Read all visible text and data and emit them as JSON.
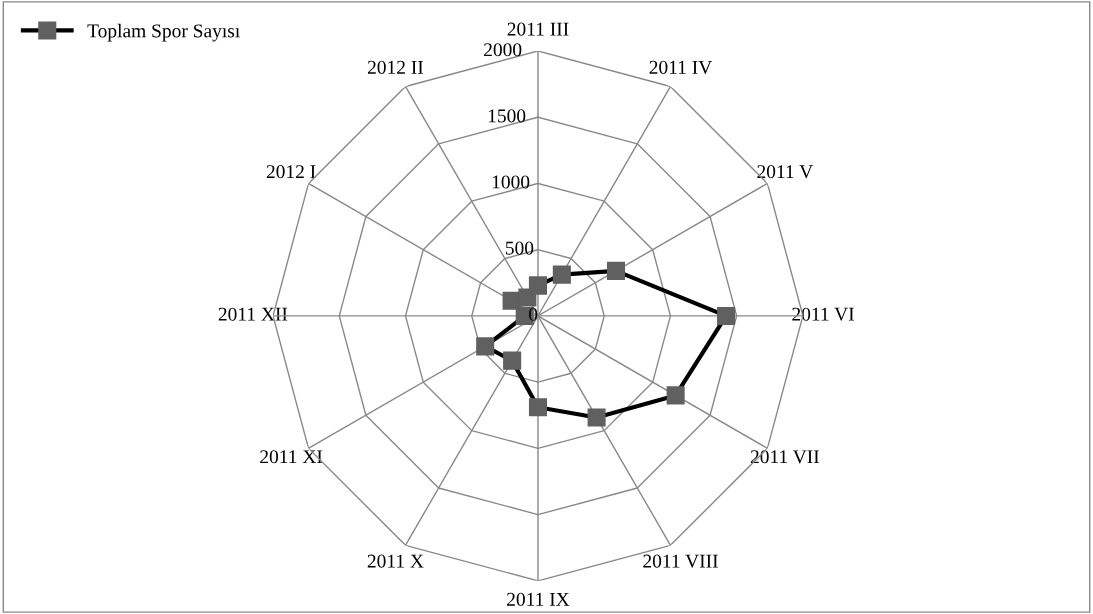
{
  "chart_data": {
    "type": "radar",
    "categories": [
      "2011 III",
      "2011 IV",
      "2011 V",
      "2011 VI",
      "2011 VII",
      "2011 VIII",
      "2011 IX",
      "2011 X",
      "2011 XI",
      "2011 XII",
      "2012 I",
      "2012 II"
    ],
    "series": [
      {
        "name": "Toplam Spor Sayısı",
        "color": "#000000",
        "values": [
          230,
          360,
          680,
          1420,
          1200,
          885,
          690,
          390,
          460,
          100,
          230,
          160
        ]
      }
    ],
    "ylim": [
      0,
      2000
    ],
    "yticks": [
      0,
      500,
      1000,
      1500,
      2000
    ],
    "grid": true,
    "legend": "top left",
    "marker": "square",
    "line_style": "solid"
  }
}
